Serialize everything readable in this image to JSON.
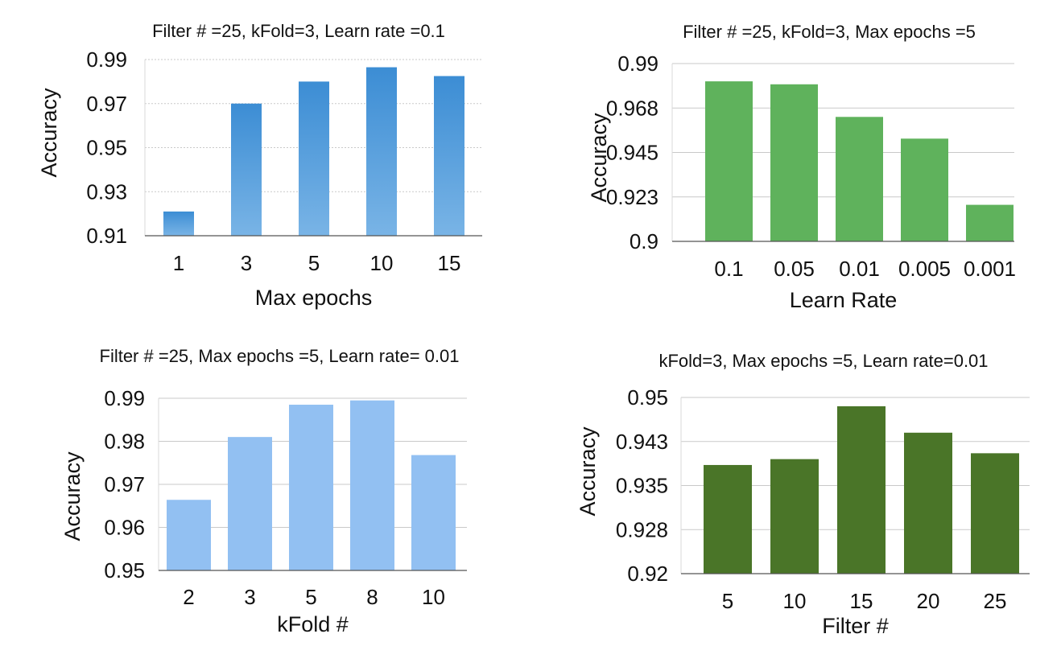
{
  "chart_data": [
    {
      "type": "bar",
      "title": "Filter # =25, kFold=3, Learn rate =0.1",
      "xlabel": "Max  epochs",
      "ylabel": "Accuracy",
      "categories": [
        "1",
        "3",
        "5",
        "10",
        "15"
      ],
      "values": [
        0.921,
        0.97,
        0.98,
        0.9865,
        0.9825
      ],
      "ylim": [
        0.91,
        0.99
      ],
      "yticks": [
        "0.91",
        "0.93",
        "0.95",
        "0.97",
        "0.99"
      ],
      "grid": true,
      "color": "#3c8dd4",
      "color_light": "#79b4e6"
    },
    {
      "type": "bar",
      "title": "Filter # =25, kFold=3, Max epochs =5",
      "xlabel": "Learn Rate",
      "ylabel": "Accuracy",
      "categories": [
        "0.1",
        "0.05",
        "0.01",
        "0.005",
        "0.001"
      ],
      "values": [
        0.981,
        0.9795,
        0.963,
        0.952,
        0.9185
      ],
      "ylim": [
        0.9,
        0.99
      ],
      "yticks": [
        "0.9",
        "0.923",
        "0.945",
        "0.968",
        "0.99"
      ],
      "grid": true,
      "color": "#5fb25c"
    },
    {
      "type": "bar",
      "title": "Filter # =25, Max epochs =5, Learn rate= 0.01",
      "xlabel": "kFold #",
      "ylabel": "Accuracy",
      "categories": [
        "2",
        "3",
        "5",
        "8",
        "10"
      ],
      "values": [
        0.9664,
        0.981,
        0.9885,
        0.9895,
        0.9768
      ],
      "ylim": [
        0.95,
        0.99
      ],
      "yticks": [
        "0.95",
        "0.96",
        "0.97",
        "0.98",
        "0.99"
      ],
      "grid": true,
      "color": "#92c0f2"
    },
    {
      "type": "bar",
      "title": "kFold=3, Max epochs =5, Learn rate=0.01",
      "xlabel": "Filter #",
      "ylabel": "Accuracy",
      "categories": [
        "5",
        "10",
        "15",
        "20",
        "25"
      ],
      "values": [
        0.9385,
        0.9395,
        0.9485,
        0.944,
        0.9405
      ],
      "ylim": [
        0.92,
        0.95
      ],
      "yticks": [
        "0.92",
        "0.928",
        "0.935",
        "0.943",
        "0.95"
      ],
      "grid": true,
      "color": "#4a7528"
    }
  ]
}
